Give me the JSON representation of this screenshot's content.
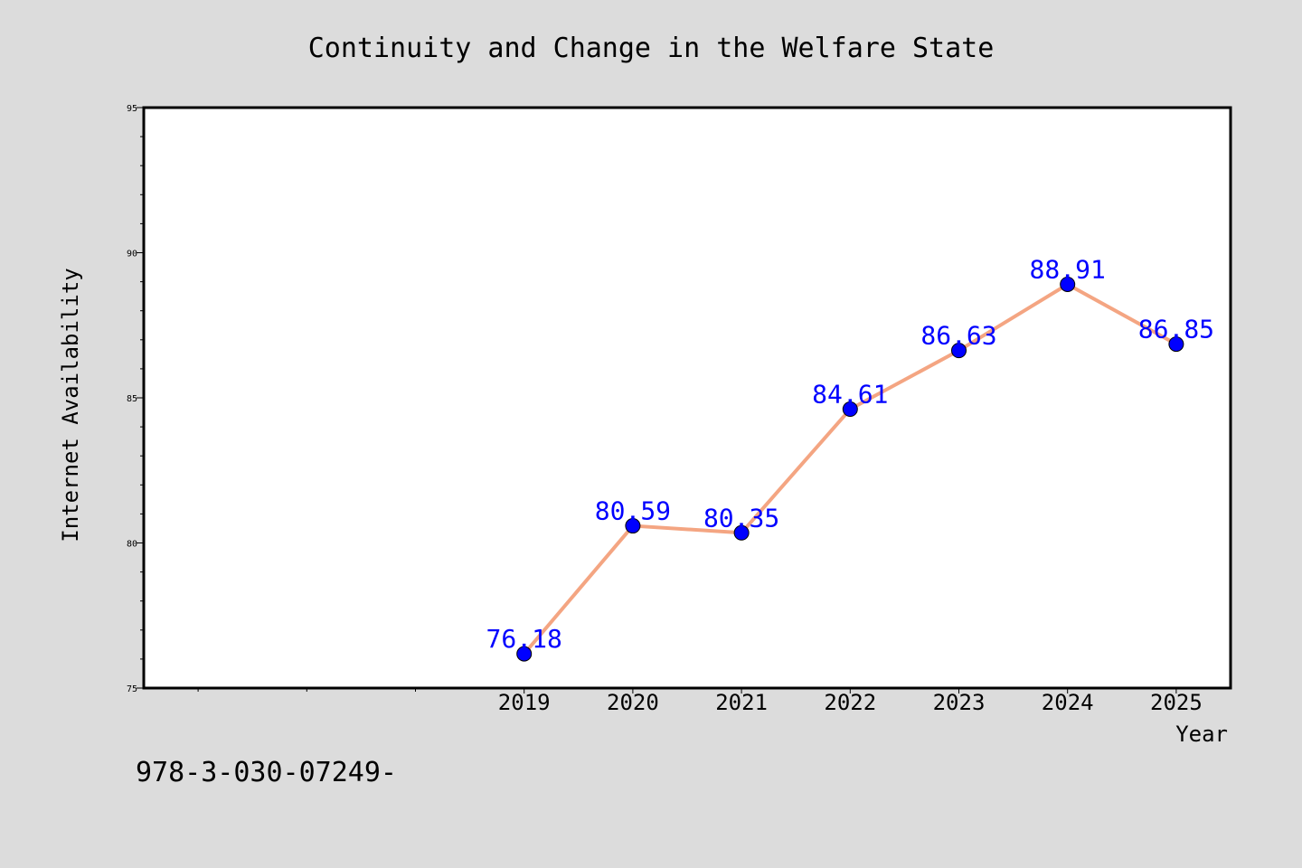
{
  "chart_data": {
    "type": "line",
    "title": "Continuity and Change in the Welfare State",
    "xlabel": "Year",
    "ylabel": "Internet Availability",
    "x": [
      2019,
      2020,
      2021,
      2022,
      2023,
      2024,
      2025
    ],
    "xtick_labels": [
      "2019",
      "2020",
      "2021",
      "2022",
      "2023",
      "2024",
      "2025"
    ],
    "xlim": [
      2015.5,
      2025.5
    ],
    "ylim": [
      75,
      95
    ],
    "yticks": [
      75,
      80,
      85,
      90,
      95
    ],
    "ytick_labels": [
      "75",
      "80",
      "85",
      "90",
      "95"
    ],
    "series": [
      {
        "values": [
          76.18,
          80.59,
          80.35,
          84.61,
          86.63,
          88.91,
          86.85
        ],
        "data_labels": [
          "76.18",
          "80.59",
          "80.35",
          "84.61",
          "86.63",
          "88.91",
          "86.85"
        ],
        "line_color": "#f4a582",
        "marker_color": "#0000ff",
        "label_color": "#0000ff"
      }
    ],
    "grid": false,
    "legend": "none",
    "background_color": "#dcdcdc",
    "plot_background_color": "#ffffff"
  },
  "footer": {
    "isbn_text": "978-3-030-07249-"
  }
}
